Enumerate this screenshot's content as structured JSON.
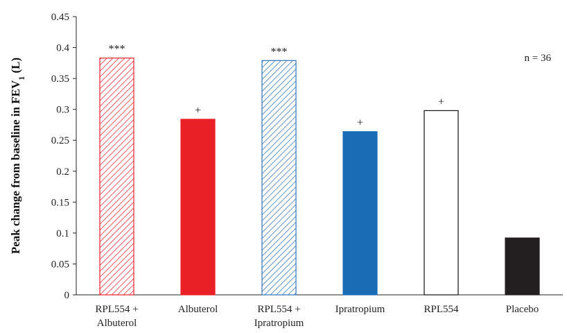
{
  "chart_data": {
    "type": "bar",
    "ylabel": {
      "main": "Peak change from baseline in FEV",
      "subscript": "1",
      "suffix": " (L)"
    },
    "ylim": [
      0,
      0.45
    ],
    "yticks": [
      "0",
      "0.05",
      "0.1",
      "0.15",
      "0.2",
      "0.25",
      "0.3",
      "0.35",
      "0.4",
      "0.45"
    ],
    "ytick_values": [
      0,
      0.05,
      0.1,
      0.15,
      0.2,
      0.25,
      0.3,
      0.35,
      0.4,
      0.45
    ],
    "grid": false,
    "annotation": "n = 36",
    "bars": [
      {
        "label_lines": [
          "RPL554 +",
          "Albuterol"
        ],
        "value": 0.383,
        "marker": "***",
        "fill": "hatch",
        "color": "#e8222b"
      },
      {
        "label_lines": [
          "Albuterol"
        ],
        "value": 0.284,
        "marker": "+",
        "fill": "solid",
        "color": "#ea2027"
      },
      {
        "label_lines": [
          "RPL554 +",
          "Ipratropium"
        ],
        "value": 0.379,
        "marker": "***",
        "fill": "hatch",
        "color": "#2f73b8"
      },
      {
        "label_lines": [
          "Ipratropium"
        ],
        "value": 0.264,
        "marker": "+",
        "fill": "solid",
        "color": "#1a6db4"
      },
      {
        "label_lines": [
          "RPL554"
        ],
        "value": 0.298,
        "marker": "+",
        "fill": "none",
        "color": "#111111"
      },
      {
        "label_lines": [
          "Placebo"
        ],
        "value": 0.092,
        "marker": "",
        "fill": "solid",
        "color": "#231f20"
      }
    ]
  }
}
